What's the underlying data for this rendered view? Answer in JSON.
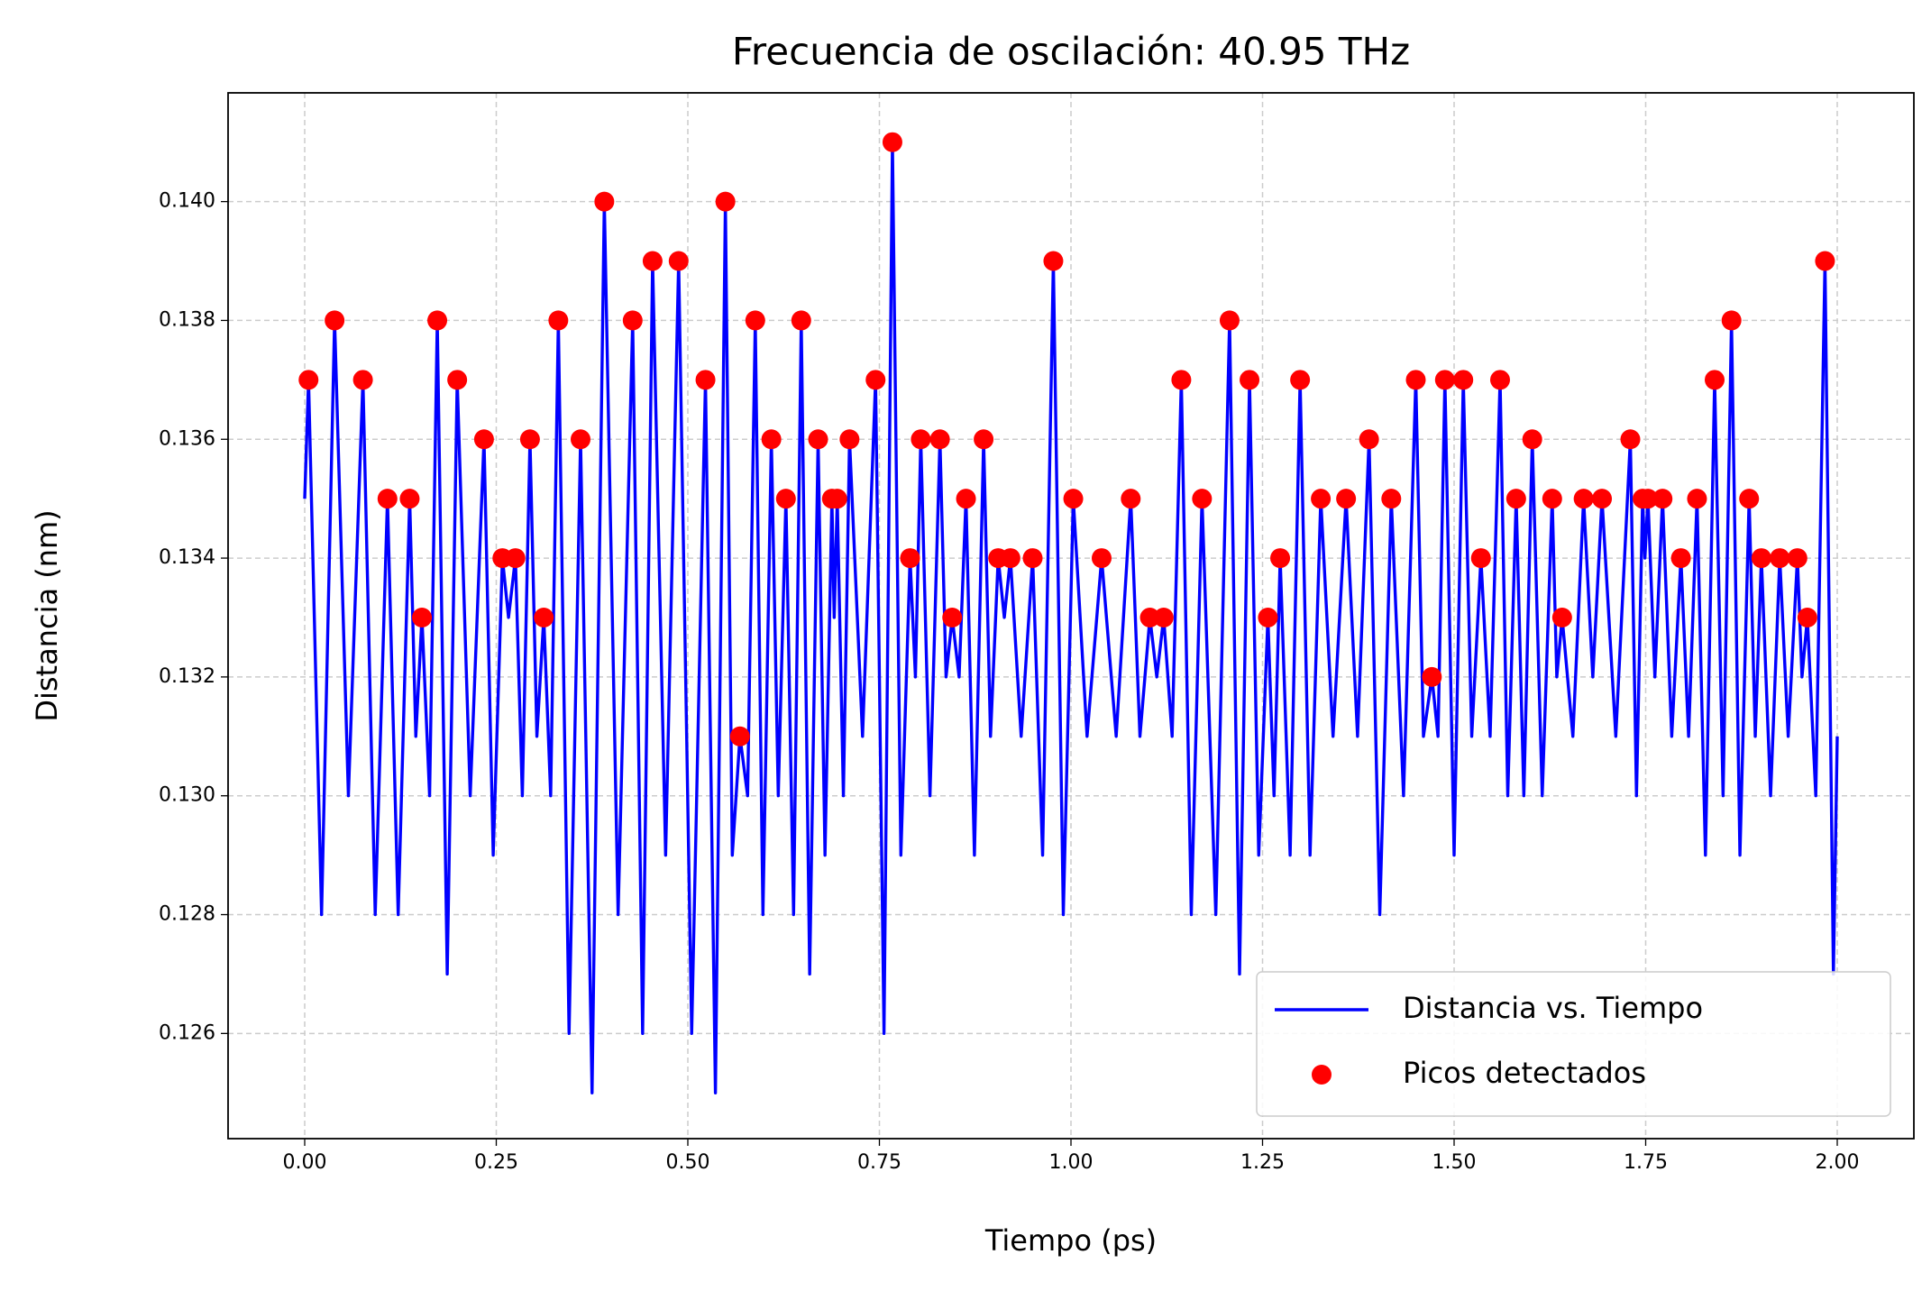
{
  "chart_data": {
    "type": "line",
    "title": "Frecuencia de oscilación: 40.95 THz",
    "x_label": "Tiempo (ps)",
    "y_label": "Distancia (nm)",
    "xlim": [
      -0.1,
      2.1
    ],
    "ylim": [
      0.12423,
      0.14183
    ],
    "xticks": [
      {
        "value": 0,
        "label": "0.00"
      },
      {
        "value": 0.25,
        "label": "0.25"
      },
      {
        "value": 0.5,
        "label": "0.50"
      },
      {
        "value": 0.75,
        "label": "0.75"
      },
      {
        "value": 1,
        "label": "1.00"
      },
      {
        "value": 1.25,
        "label": "1.25"
      },
      {
        "value": 1.5,
        "label": "1.50"
      },
      {
        "value": 1.75,
        "label": "1.75"
      },
      {
        "value": 2,
        "label": "2.00"
      }
    ],
    "yticks": [
      {
        "value": 0.126,
        "label": "0.126"
      },
      {
        "value": 0.128,
        "label": "0.128"
      },
      {
        "value": 0.13,
        "label": "0.130"
      },
      {
        "value": 0.132,
        "label": "0.132"
      },
      {
        "value": 0.134,
        "label": "0.134"
      },
      {
        "value": 0.136,
        "label": "0.136"
      },
      {
        "value": 0.138,
        "label": "0.138"
      },
      {
        "value": 0.14,
        "label": "0.140"
      }
    ],
    "grid": true,
    "legend": "lower right",
    "series": [
      {
        "name": "Distancia vs. Tiempo",
        "kind": "line",
        "color": "#0000ff",
        "x": [
          0,
          0.005,
          0.022,
          0.039,
          0.057,
          0.076,
          0.092,
          0.108,
          0.122,
          0.137,
          0.145,
          0.153,
          0.163,
          0.173,
          0.186,
          0.199,
          0.216,
          0.234,
          0.246,
          0.258,
          0.266,
          0.275,
          0.284,
          0.294,
          0.303,
          0.312,
          0.321,
          0.331,
          0.345,
          0.36,
          0.375,
          0.391,
          0.409,
          0.428,
          0.441,
          0.454,
          0.471,
          0.488,
          0.505,
          0.523,
          0.536,
          0.549,
          0.558,
          0.568,
          0.578,
          0.588,
          0.598,
          0.609,
          0.618,
          0.628,
          0.638,
          0.648,
          0.659,
          0.67,
          0.679,
          0.688,
          0.691,
          0.695,
          0.703,
          0.711,
          0.728,
          0.745,
          0.756,
          0.767,
          0.778,
          0.79,
          0.797,
          0.804,
          0.816,
          0.829,
          0.837,
          0.845,
          0.854,
          0.863,
          0.874,
          0.886,
          0.895,
          0.905,
          0.913,
          0.921,
          0.935,
          0.95,
          0.963,
          0.977,
          0.99,
          1.003,
          1.021,
          1.04,
          1.059,
          1.078,
          1.09,
          1.103,
          1.112,
          1.121,
          1.132,
          1.144,
          1.157,
          1.171,
          1.189,
          1.207,
          1.22,
          1.233,
          1.245,
          1.257,
          1.265,
          1.273,
          1.286,
          1.299,
          1.312,
          1.326,
          1.342,
          1.359,
          1.374,
          1.389,
          1.403,
          1.418,
          1.434,
          1.45,
          1.46,
          1.471,
          1.479,
          1.488,
          1.5,
          1.512,
          1.523,
          1.535,
          1.547,
          1.56,
          1.57,
          1.581,
          1.591,
          1.602,
          1.615,
          1.628,
          1.634,
          1.641,
          1.655,
          1.669,
          1.681,
          1.693,
          1.711,
          1.73,
          1.738,
          1.746,
          1.749,
          1.753,
          1.762,
          1.772,
          1.784,
          1.796,
          1.806,
          1.817,
          1.828,
          1.84,
          1.851,
          1.862,
          1.873,
          1.885,
          1.893,
          1.901,
          1.913,
          1.925,
          1.936,
          1.948,
          1.954,
          1.961,
          1.972,
          1.984,
          1.995,
          2.0
        ],
        "values": [
          0.135,
          0.137,
          0.128,
          0.138,
          0.13,
          0.137,
          0.128,
          0.135,
          0.128,
          0.135,
          0.131,
          0.133,
          0.13,
          0.138,
          0.127,
          0.137,
          0.13,
          0.136,
          0.129,
          0.134,
          0.133,
          0.134,
          0.13,
          0.136,
          0.131,
          0.133,
          0.13,
          0.138,
          0.126,
          0.136,
          0.125,
          0.14,
          0.128,
          0.138,
          0.126,
          0.139,
          0.129,
          0.139,
          0.126,
          0.137,
          0.125,
          0.14,
          0.129,
          0.131,
          0.13,
          0.138,
          0.128,
          0.136,
          0.13,
          0.135,
          0.128,
          0.138,
          0.127,
          0.136,
          0.129,
          0.135,
          0.133,
          0.135,
          0.13,
          0.136,
          0.131,
          0.137,
          0.126,
          0.141,
          0.129,
          0.134,
          0.132,
          0.136,
          0.13,
          0.136,
          0.132,
          0.133,
          0.132,
          0.135,
          0.129,
          0.136,
          0.131,
          0.134,
          0.133,
          0.134,
          0.131,
          0.134,
          0.129,
          0.139,
          0.128,
          0.135,
          0.131,
          0.134,
          0.131,
          0.135,
          0.131,
          0.133,
          0.132,
          0.133,
          0.131,
          0.137,
          0.128,
          0.135,
          0.128,
          0.138,
          0.127,
          0.137,
          0.129,
          0.133,
          0.13,
          0.134,
          0.129,
          0.137,
          0.129,
          0.135,
          0.131,
          0.135,
          0.131,
          0.136,
          0.128,
          0.135,
          0.13,
          0.137,
          0.131,
          0.132,
          0.131,
          0.137,
          0.129,
          0.137,
          0.131,
          0.134,
          0.131,
          0.137,
          0.13,
          0.135,
          0.13,
          0.136,
          0.13,
          0.135,
          0.132,
          0.133,
          0.131,
          0.135,
          0.132,
          0.135,
          0.131,
          0.136,
          0.13,
          0.135,
          0.134,
          0.135,
          0.132,
          0.135,
          0.131,
          0.134,
          0.131,
          0.135,
          0.129,
          0.137,
          0.13,
          0.138,
          0.129,
          0.135,
          0.131,
          0.134,
          0.13,
          0.134,
          0.131,
          0.134,
          0.132,
          0.133,
          0.13,
          0.139,
          0.127,
          0.131
        ]
      },
      {
        "name": "Picos detectados",
        "kind": "scatter",
        "color": "#ff0000",
        "x": [
          0.005,
          0.039,
          0.076,
          0.108,
          0.137,
          0.153,
          0.173,
          0.199,
          0.234,
          0.258,
          0.275,
          0.294,
          0.312,
          0.331,
          0.36,
          0.391,
          0.428,
          0.454,
          0.488,
          0.523,
          0.549,
          0.568,
          0.588,
          0.609,
          0.628,
          0.648,
          0.67,
          0.688,
          0.695,
          0.711,
          0.745,
          0.767,
          0.79,
          0.804,
          0.829,
          0.845,
          0.863,
          0.886,
          0.905,
          0.921,
          0.95,
          0.977,
          1.003,
          1.04,
          1.078,
          1.103,
          1.121,
          1.144,
          1.171,
          1.207,
          1.233,
          1.257,
          1.273,
          1.299,
          1.326,
          1.359,
          1.389,
          1.418,
          1.45,
          1.471,
          1.488,
          1.512,
          1.535,
          1.56,
          1.581,
          1.602,
          1.628,
          1.641,
          1.669,
          1.693,
          1.73,
          1.746,
          1.753,
          1.772,
          1.796,
          1.817,
          1.84,
          1.862,
          1.885,
          1.901,
          1.925,
          1.948,
          1.961,
          1.984
        ],
        "values": [
          0.137,
          0.138,
          0.137,
          0.135,
          0.135,
          0.133,
          0.138,
          0.137,
          0.136,
          0.134,
          0.134,
          0.136,
          0.133,
          0.138,
          0.136,
          0.14,
          0.138,
          0.139,
          0.139,
          0.137,
          0.14,
          0.131,
          0.138,
          0.136,
          0.135,
          0.138,
          0.136,
          0.135,
          0.135,
          0.136,
          0.137,
          0.141,
          0.134,
          0.136,
          0.136,
          0.133,
          0.135,
          0.136,
          0.134,
          0.134,
          0.134,
          0.139,
          0.135,
          0.134,
          0.135,
          0.133,
          0.133,
          0.137,
          0.135,
          0.138,
          0.137,
          0.133,
          0.134,
          0.137,
          0.135,
          0.135,
          0.136,
          0.135,
          0.137,
          0.132,
          0.137,
          0.137,
          0.134,
          0.137,
          0.135,
          0.136,
          0.135,
          0.133,
          0.135,
          0.135,
          0.136,
          0.135,
          0.135,
          0.135,
          0.134,
          0.135,
          0.137,
          0.138,
          0.135,
          0.134,
          0.134,
          0.134,
          0.133,
          0.139
        ]
      }
    ]
  }
}
